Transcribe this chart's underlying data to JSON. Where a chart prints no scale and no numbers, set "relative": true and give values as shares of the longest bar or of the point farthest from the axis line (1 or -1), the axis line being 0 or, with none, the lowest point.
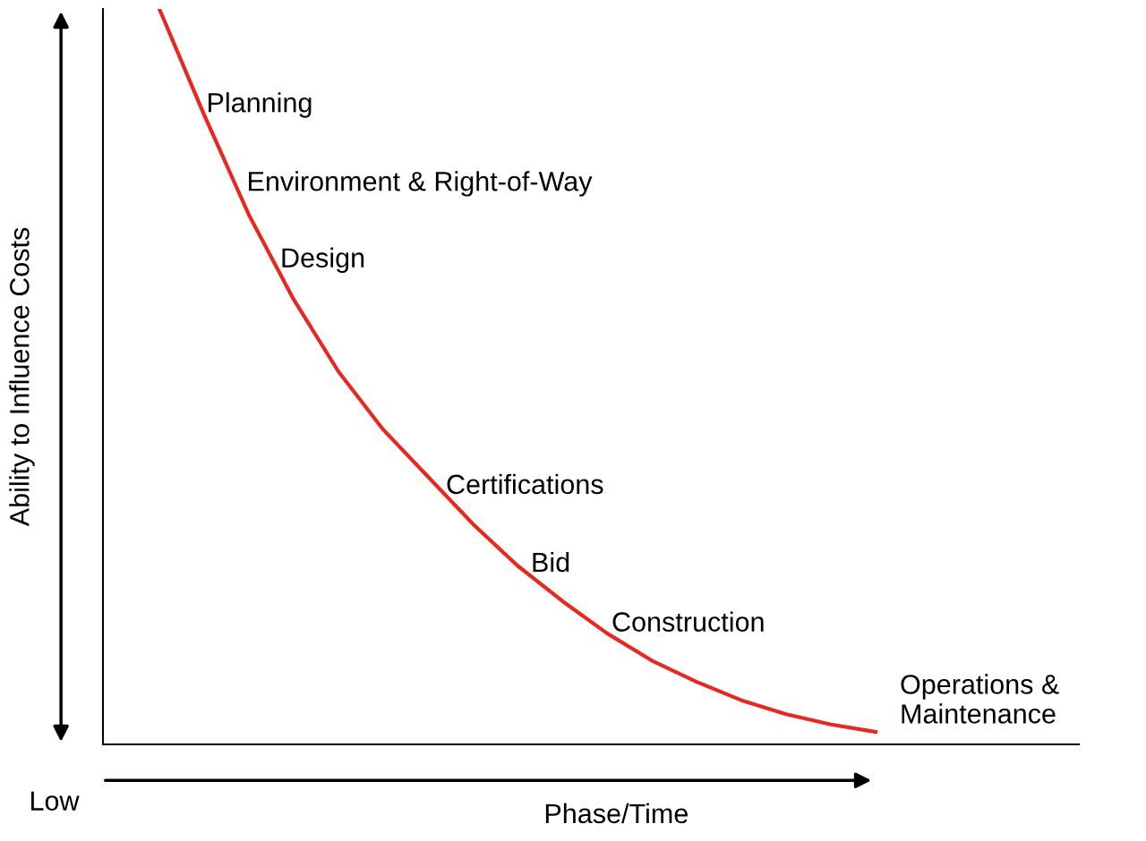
{
  "chart_data": {
    "type": "line",
    "relative": true,
    "xlabel": "Phase/Time",
    "ylabel": "Ability to Influence Costs",
    "grid": false,
    "legend": false,
    "marker": "none",
    "line_style": "solid",
    "categories": [
      null,
      null,
      null,
      null,
      null,
      null,
      null,
      null,
      null,
      null,
      null,
      null,
      null,
      null,
      null,
      null,
      null
    ],
    "series": [
      {
        "color": "#e8281e",
        "values": [
          1.0,
          0.856,
          0.72,
          0.605,
          0.507,
          0.428,
          0.364,
          0.3,
          0.243,
          0.195,
          0.151,
          0.114,
          0.085,
          0.06,
          0.041,
          0.027,
          0.017
        ]
      }
    ],
    "annotations": [
      "Planning",
      "Environment & Right-of-Way",
      "Design",
      "Certifications",
      "Bid",
      "Construction",
      "Operations &\nMaintenance",
      "Low"
    ]
  }
}
